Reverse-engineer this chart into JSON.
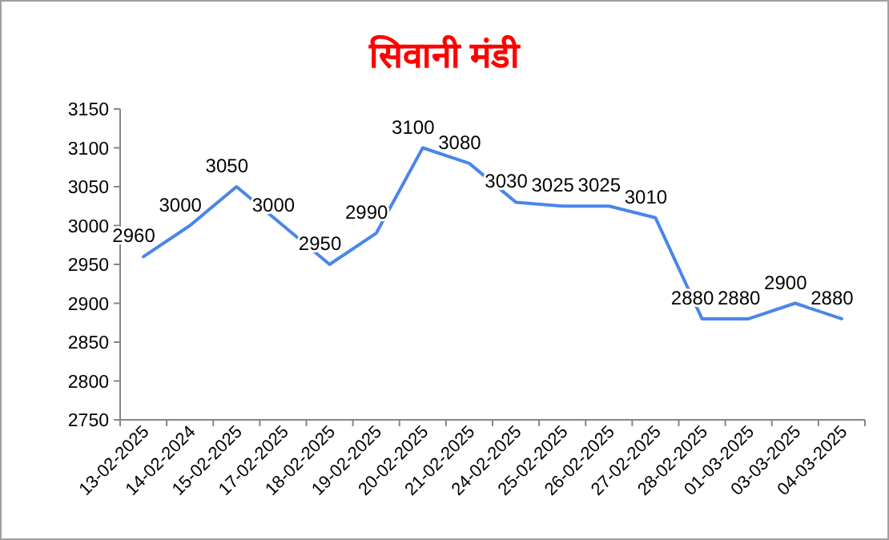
{
  "chart_data": {
    "type": "line",
    "title": "सिवानी मंडी",
    "categories": [
      "13-02-2025",
      "14-02-2024",
      "15-02-2025",
      "17-02-2025",
      "18-02-2025",
      "19-02-2025",
      "20-02-2025",
      "21-02-2025",
      "24-02-2025",
      "25-02-2025",
      "26-02-2025",
      "27-02-2025",
      "28-02-2025",
      "01-03-2025",
      "03-03-2025",
      "04-03-2025"
    ],
    "values": [
      2960,
      3000,
      3050,
      3000,
      2950,
      2990,
      3100,
      3080,
      3030,
      3025,
      3025,
      3010,
      2880,
      2880,
      2900,
      2880
    ],
    "color": "#4a86e8",
    "ylim": [
      2750,
      3150
    ],
    "yticks": [
      2750,
      2800,
      2850,
      2900,
      2950,
      3000,
      3050,
      3100,
      3150
    ],
    "data_labels": true,
    "marker": "none"
  }
}
